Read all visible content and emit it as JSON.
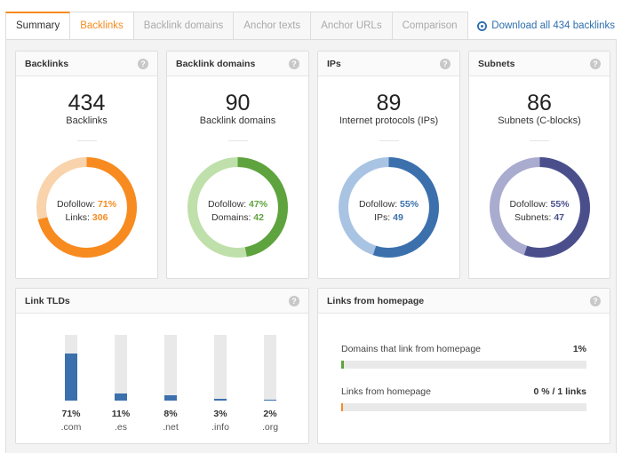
{
  "tabs": [
    {
      "label": "Summary"
    },
    {
      "label": "Backlinks"
    },
    {
      "label": "Backlink domains"
    },
    {
      "label": "Anchor texts"
    },
    {
      "label": "Anchor URLs"
    },
    {
      "label": "Comparison"
    }
  ],
  "download": {
    "label": "Download all 434 backlinks",
    "icon": "download-circle-icon"
  },
  "colors": {
    "orange": "#f78b1f",
    "green": "#5ea33e",
    "blue": "#3b70ad",
    "navy": "#4a4f8c"
  },
  "metrics": [
    {
      "title": "Backlinks",
      "value": "434",
      "sublabel": "Backlinks",
      "line1_label": "Dofollow:",
      "line1_value": "71%",
      "line2_label": "Links:",
      "line2_value": "306",
      "fraction": 0.71,
      "color": "#f78b1f",
      "track": "#f8d3ac"
    },
    {
      "title": "Backlink domains",
      "value": "90",
      "sublabel": "Backlink domains",
      "line1_label": "Dofollow:",
      "line1_value": "47%",
      "line2_label": "Domains:",
      "line2_value": "42",
      "fraction": 0.47,
      "color": "#5ea33e",
      "track": "#bfe0aa"
    },
    {
      "title": "IPs",
      "value": "89",
      "sublabel": "Internet protocols (IPs)",
      "line1_label": "Dofollow:",
      "line1_value": "55%",
      "line2_label": "IPs:",
      "line2_value": "49",
      "fraction": 0.55,
      "color": "#3b70ad",
      "track": "#a9c4e3"
    },
    {
      "title": "Subnets",
      "value": "86",
      "sublabel": "Subnets (C-blocks)",
      "line1_label": "Dofollow:",
      "line1_value": "55%",
      "line2_label": "Subnets:",
      "line2_value": "47",
      "fraction": 0.55,
      "color": "#4a4f8c",
      "track": "#a9abcf"
    }
  ],
  "link_tlds": {
    "title": "Link TLDs",
    "items": [
      {
        "pct_label": "71%",
        "name": ".com",
        "fraction": 0.71
      },
      {
        "pct_label": "11%",
        "name": ".es",
        "fraction": 0.11
      },
      {
        "pct_label": "8%",
        "name": ".net",
        "fraction": 0.08
      },
      {
        "pct_label": "3%",
        "name": ".info",
        "fraction": 0.03
      },
      {
        "pct_label": "2%",
        "name": ".org",
        "fraction": 0.02
      }
    ]
  },
  "homepage": {
    "title": "Links from homepage",
    "rows": [
      {
        "label": "Domains that link from homepage",
        "value": "1%",
        "fraction": 0.01,
        "color": "#5ea33e"
      },
      {
        "label": "Links from homepage",
        "value": "0 % / 1 links",
        "fraction": 0.0,
        "color": "#f78b1f"
      }
    ]
  }
}
